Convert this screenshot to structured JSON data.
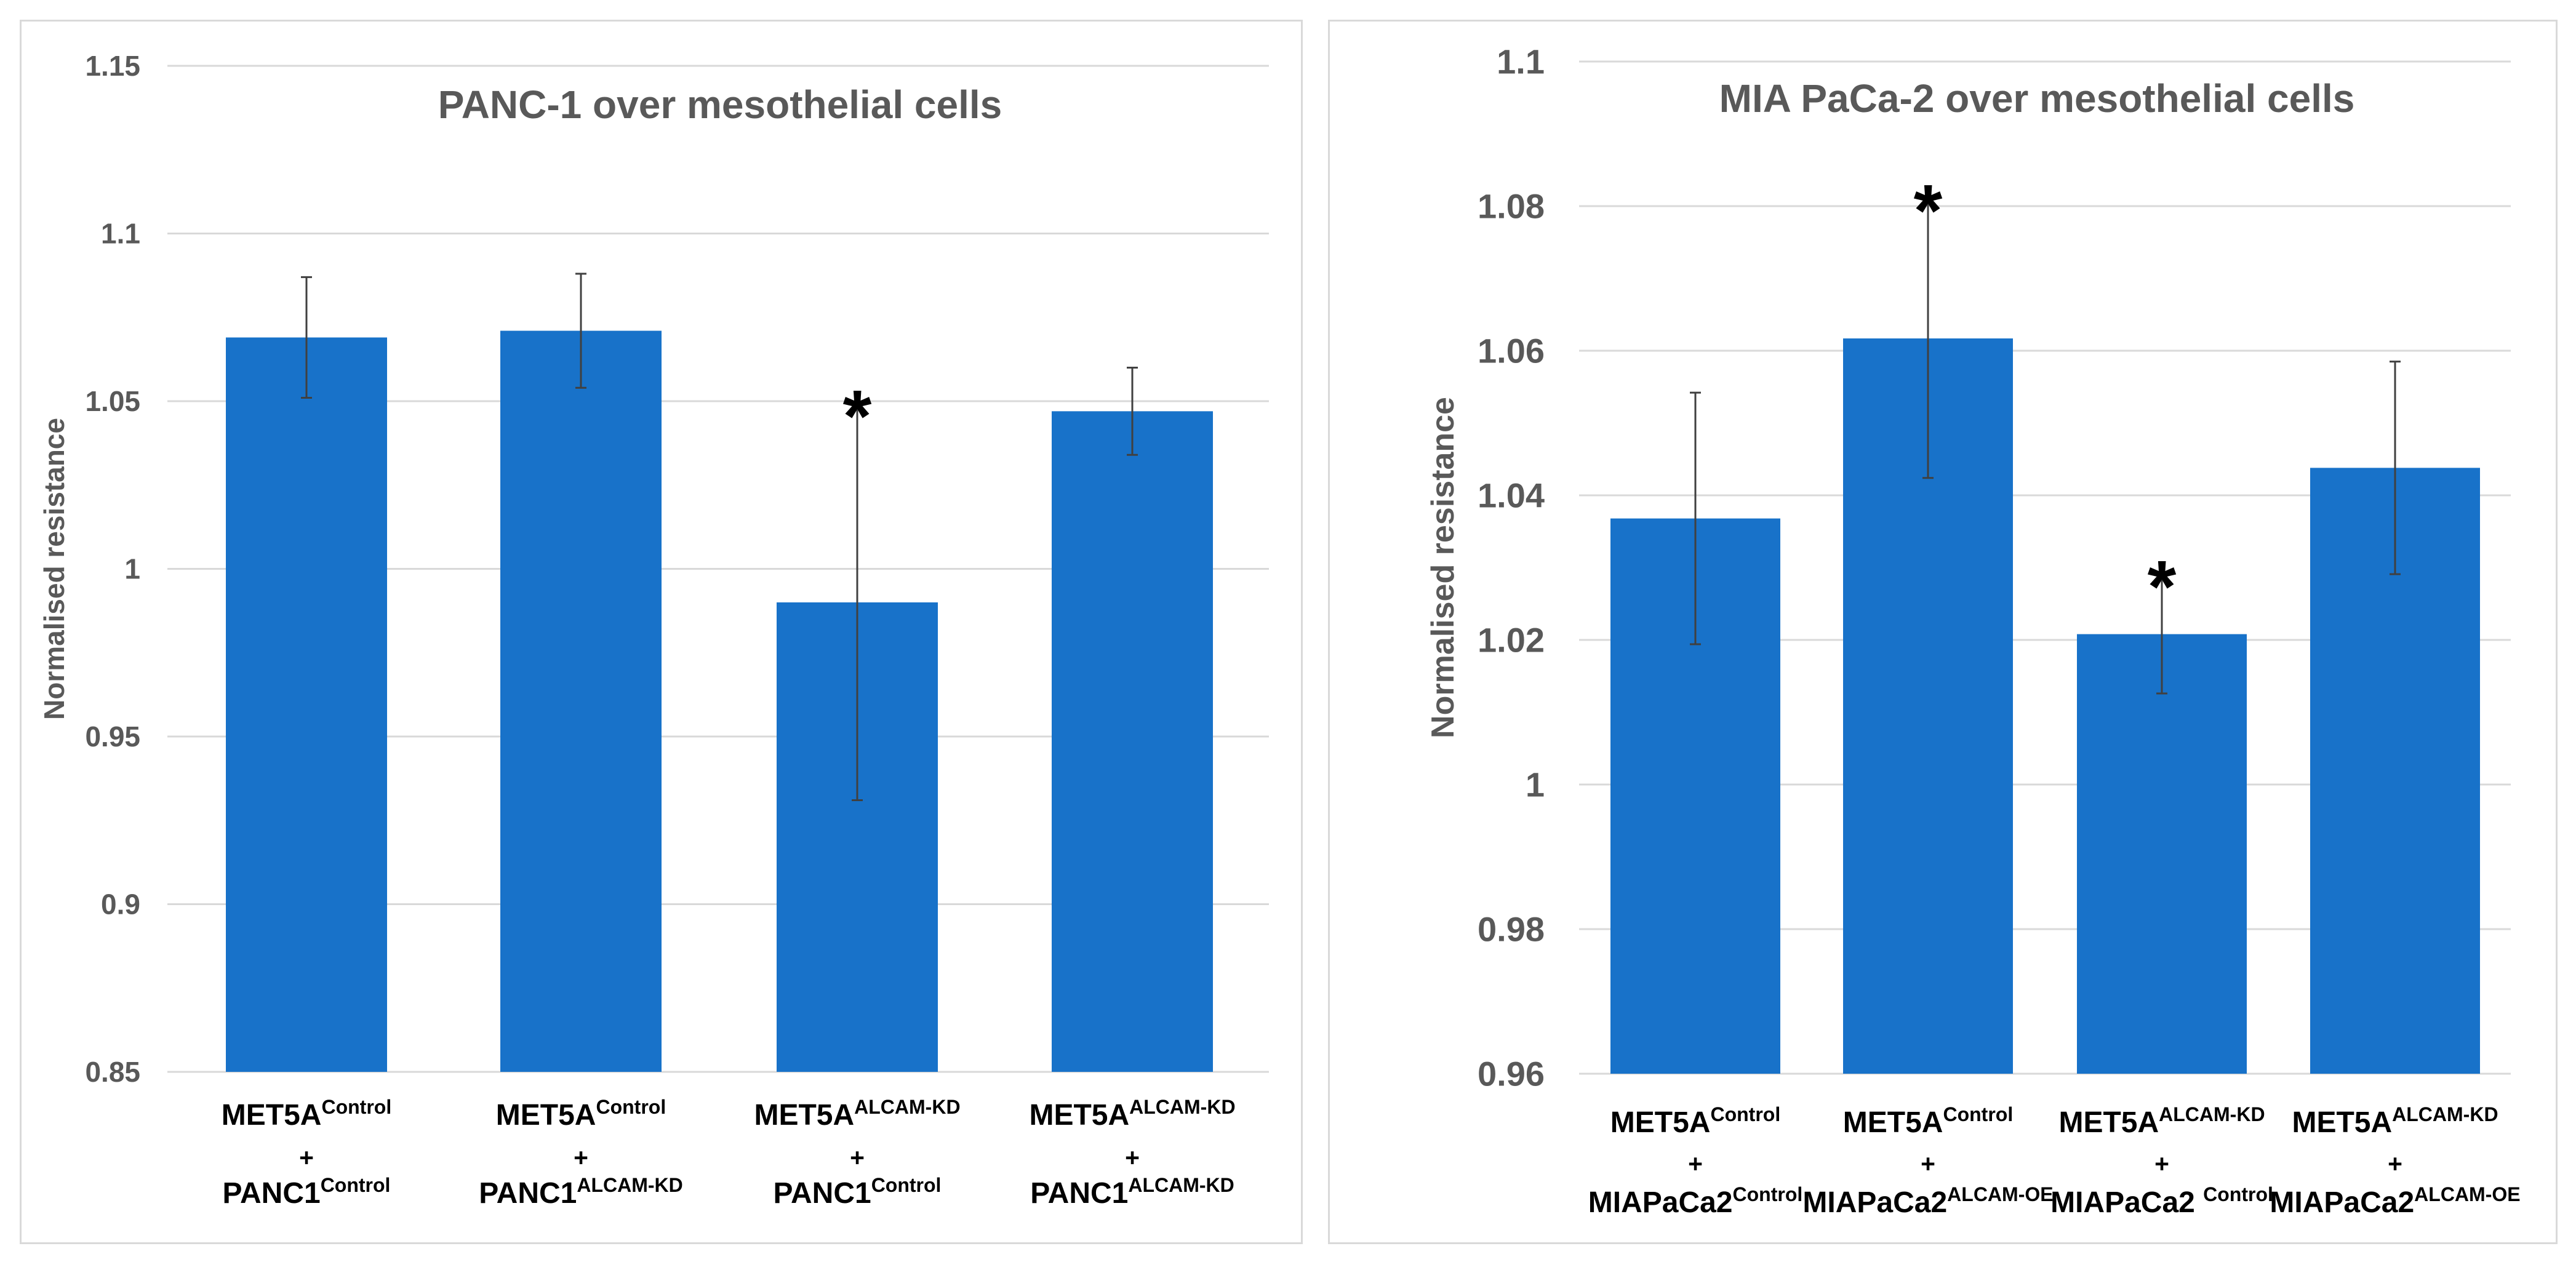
{
  "colors": {
    "bar": "#1872c9",
    "grid": "#d9d9d9",
    "text_axis": "#595959",
    "text_label": "#000000",
    "error_bar": "#404040"
  },
  "chart_data": [
    {
      "type": "bar",
      "title": "PANC-1 over mesothelial cells",
      "xlabel": "",
      "ylabel": "Normalised resistance",
      "ylim": [
        0.85,
        1.15
      ],
      "yticks": [
        "1.15",
        "1.1",
        "1.05",
        "1",
        "0.95",
        "0.9",
        "0.85"
      ],
      "grid": true,
      "categories": [
        {
          "line1": {
            "base": "MET5A",
            "sup": "Control"
          },
          "plus": "+",
          "line3": {
            "base": "PANC1",
            "sup": "Control"
          }
        },
        {
          "line1": {
            "base": "MET5A",
            "sup": "Control"
          },
          "plus": "+",
          "line3": {
            "base": "PANC1",
            "sup": "ALCAM-KD"
          }
        },
        {
          "line1": {
            "base": "MET5A",
            "sup": "ALCAM-KD"
          },
          "plus": "+",
          "line3": {
            "base": "PANC1",
            "sup": "Control"
          }
        },
        {
          "line1": {
            "base": "MET5A",
            "sup": "ALCAM-KD"
          },
          "plus": "+",
          "line3": {
            "base": "PANC1",
            "sup": "ALCAM-KD"
          }
        }
      ],
      "values": [
        1.069,
        1.071,
        0.99,
        1.047
      ],
      "errors": [
        0.018,
        0.017,
        0.059,
        0.013
      ],
      "significance": [
        "",
        "",
        "*",
        ""
      ]
    },
    {
      "type": "bar",
      "title": "MIA PaCa-2 over mesothelial cells",
      "xlabel": "",
      "ylabel": "Normalised resistance",
      "ylim": [
        0.96,
        1.1
      ],
      "yticks": [
        "1.1",
        "1.08",
        "1.06",
        "1.04",
        "1.02",
        "1",
        "0.98",
        "0.96"
      ],
      "grid": true,
      "categories": [
        {
          "line1": {
            "base": "MET5A",
            "sup": "Control"
          },
          "plus": "+",
          "line3": {
            "base": "MIAPaCa2",
            "sup": "Control"
          }
        },
        {
          "line1": {
            "base": "MET5A",
            "sup": "Control"
          },
          "plus": "+",
          "line3": {
            "base": "MIAPaCa2",
            "sup": "ALCAM-OE"
          }
        },
        {
          "line1": {
            "base": "MET5A",
            "sup": "ALCAM-KD"
          },
          "plus": "+",
          "line3": {
            "base": "MIAPaCa2 ",
            "sup": "Control"
          }
        },
        {
          "line1": {
            "base": "MET5A",
            "sup": "ALCAM-KD"
          },
          "plus": "+",
          "line3": {
            "base": "MIAPaCa2",
            "sup": "ALCAM-OE"
          }
        }
      ],
      "values": [
        1.0368,
        1.0617,
        1.0208,
        1.0438
      ],
      "errors": [
        0.0174,
        0.0193,
        0.0082,
        0.0147
      ],
      "significance": [
        "",
        "*",
        "*",
        ""
      ]
    }
  ]
}
